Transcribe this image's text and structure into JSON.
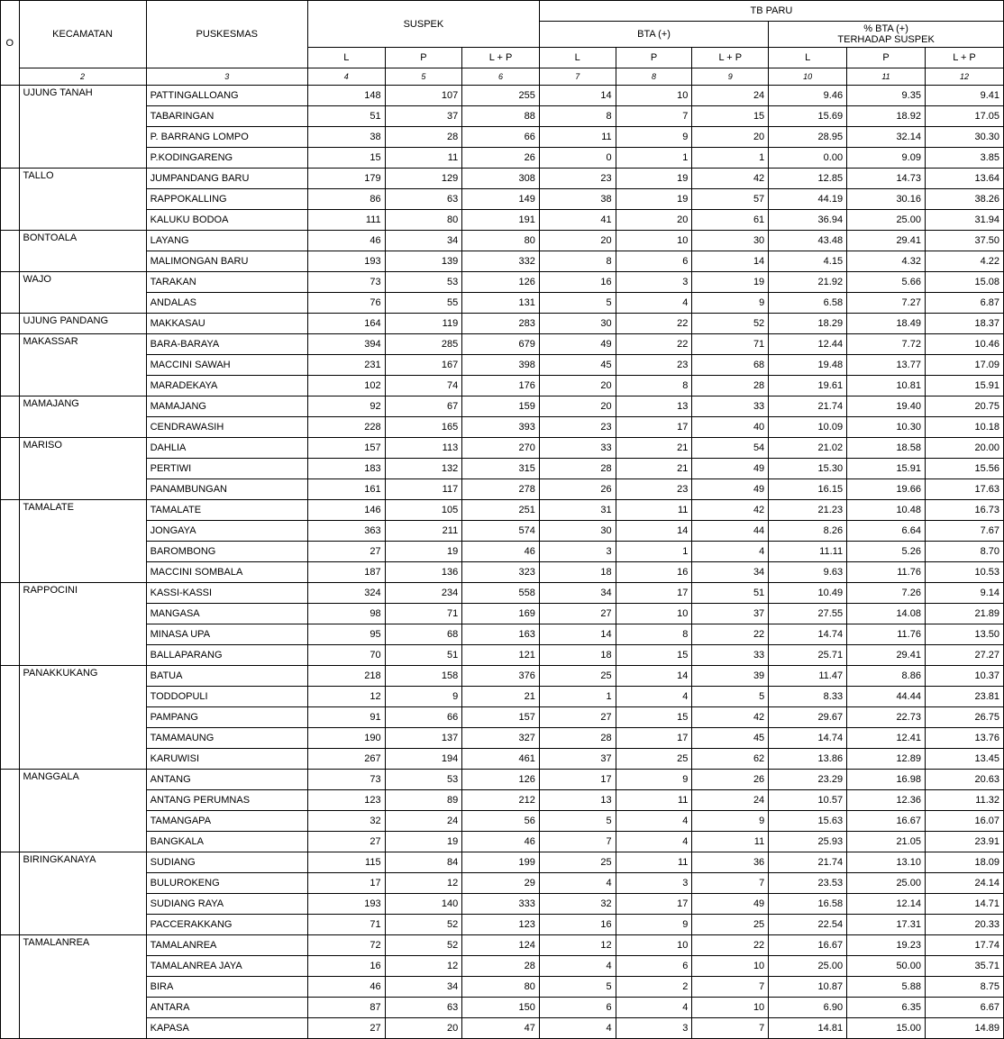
{
  "headers": {
    "kecamatan": "KECAMATAN",
    "puskesmas": "PUSKESMAS",
    "suspek": "SUSPEK",
    "tbparu": "TB PARU",
    "bta": "BTA (+)",
    "pct_bta": "% BTA (+)",
    "terhadap": "TERHADAP SUSPEK",
    "L": "L",
    "P": "P",
    "LP": "L + P",
    "no_label": "O"
  },
  "colnums": [
    "2",
    "3",
    "4",
    "5",
    "6",
    "7",
    "8",
    "9",
    "10",
    "11",
    "12"
  ],
  "rows": [
    {
      "kec": "UJUNG TANAH",
      "pus": "PATTINGALLOANG",
      "vals": [
        "148",
        "107",
        "255",
        "14",
        "10",
        "24",
        "9.46",
        "9.35",
        "9.41"
      ]
    },
    {
      "kec": "",
      "pus": "TABARINGAN",
      "vals": [
        "51",
        "37",
        "88",
        "8",
        "7",
        "15",
        "15.69",
        "18.92",
        "17.05"
      ]
    },
    {
      "kec": "",
      "pus": "P. BARRANG LOMPO",
      "vals": [
        "38",
        "28",
        "66",
        "11",
        "9",
        "20",
        "28.95",
        "32.14",
        "30.30"
      ]
    },
    {
      "kec": "",
      "pus": "P.KODINGARENG",
      "vals": [
        "15",
        "11",
        "26",
        "0",
        "1",
        "1",
        "0.00",
        "9.09",
        "3.85"
      ]
    },
    {
      "kec": "TALLO",
      "pus": "JUMPANDANG BARU",
      "vals": [
        "179",
        "129",
        "308",
        "23",
        "19",
        "42",
        "12.85",
        "14.73",
        "13.64"
      ]
    },
    {
      "kec": "",
      "pus": "RAPPOKALLING",
      "vals": [
        "86",
        "63",
        "149",
        "38",
        "19",
        "57",
        "44.19",
        "30.16",
        "38.26"
      ]
    },
    {
      "kec": "",
      "pus": "KALUKU BODOA",
      "vals": [
        "111",
        "80",
        "191",
        "41",
        "20",
        "61",
        "36.94",
        "25.00",
        "31.94"
      ]
    },
    {
      "kec": "BONTOALA",
      "pus": "LAYANG",
      "vals": [
        "46",
        "34",
        "80",
        "20",
        "10",
        "30",
        "43.48",
        "29.41",
        "37.50"
      ]
    },
    {
      "kec": "",
      "pus": "MALIMONGAN BARU",
      "vals": [
        "193",
        "139",
        "332",
        "8",
        "6",
        "14",
        "4.15",
        "4.32",
        "4.22"
      ]
    },
    {
      "kec": "WAJO",
      "pus": "TARAKAN",
      "vals": [
        "73",
        "53",
        "126",
        "16",
        "3",
        "19",
        "21.92",
        "5.66",
        "15.08"
      ]
    },
    {
      "kec": "",
      "pus": "ANDALAS",
      "vals": [
        "76",
        "55",
        "131",
        "5",
        "4",
        "9",
        "6.58",
        "7.27",
        "6.87"
      ]
    },
    {
      "kec": "UJUNG PANDANG",
      "pus": "MAKKASAU",
      "vals": [
        "164",
        "119",
        "283",
        "30",
        "22",
        "52",
        "18.29",
        "18.49",
        "18.37"
      ]
    },
    {
      "kec": "MAKASSAR",
      "pus": "BARA-BARAYA",
      "vals": [
        "394",
        "285",
        "679",
        "49",
        "22",
        "71",
        "12.44",
        "7.72",
        "10.46"
      ]
    },
    {
      "kec": "",
      "pus": "MACCINI SAWAH",
      "vals": [
        "231",
        "167",
        "398",
        "45",
        "23",
        "68",
        "19.48",
        "13.77",
        "17.09"
      ]
    },
    {
      "kec": "",
      "pus": "MARADEKAYA",
      "vals": [
        "102",
        "74",
        "176",
        "20",
        "8",
        "28",
        "19.61",
        "10.81",
        "15.91"
      ]
    },
    {
      "kec": "MAMAJANG",
      "pus": "MAMAJANG",
      "vals": [
        "92",
        "67",
        "159",
        "20",
        "13",
        "33",
        "21.74",
        "19.40",
        "20.75"
      ]
    },
    {
      "kec": "",
      "pus": "CENDRAWASIH",
      "vals": [
        "228",
        "165",
        "393",
        "23",
        "17",
        "40",
        "10.09",
        "10.30",
        "10.18"
      ]
    },
    {
      "kec": "MARISO",
      "pus": "DAHLIA",
      "vals": [
        "157",
        "113",
        "270",
        "33",
        "21",
        "54",
        "21.02",
        "18.58",
        "20.00"
      ]
    },
    {
      "kec": "",
      "pus": "PERTIWI",
      "vals": [
        "183",
        "132",
        "315",
        "28",
        "21",
        "49",
        "15.30",
        "15.91",
        "15.56"
      ]
    },
    {
      "kec": "",
      "pus": "PANAMBUNGAN",
      "vals": [
        "161",
        "117",
        "278",
        "26",
        "23",
        "49",
        "16.15",
        "19.66",
        "17.63"
      ]
    },
    {
      "kec": "TAMALATE",
      "pus": "TAMALATE",
      "vals": [
        "146",
        "105",
        "251",
        "31",
        "11",
        "42",
        "21.23",
        "10.48",
        "16.73"
      ]
    },
    {
      "kec": "",
      "pus": "JONGAYA",
      "vals": [
        "363",
        "211",
        "574",
        "30",
        "14",
        "44",
        "8.26",
        "6.64",
        "7.67"
      ]
    },
    {
      "kec": "",
      "pus": "BAROMBONG",
      "vals": [
        "27",
        "19",
        "46",
        "3",
        "1",
        "4",
        "11.11",
        "5.26",
        "8.70"
      ]
    },
    {
      "kec": "",
      "pus": "MACCINI SOMBALA",
      "vals": [
        "187",
        "136",
        "323",
        "18",
        "16",
        "34",
        "9.63",
        "11.76",
        "10.53"
      ]
    },
    {
      "kec": "RAPPOCINI",
      "pus": "KASSI-KASSI",
      "vals": [
        "324",
        "234",
        "558",
        "34",
        "17",
        "51",
        "10.49",
        "7.26",
        "9.14"
      ]
    },
    {
      "kec": "",
      "pus": "MANGASA",
      "vals": [
        "98",
        "71",
        "169",
        "27",
        "10",
        "37",
        "27.55",
        "14.08",
        "21.89"
      ]
    },
    {
      "kec": "",
      "pus": "MINASA UPA",
      "vals": [
        "95",
        "68",
        "163",
        "14",
        "8",
        "22",
        "14.74",
        "11.76",
        "13.50"
      ]
    },
    {
      "kec": "",
      "pus": "BALLAPARANG",
      "vals": [
        "70",
        "51",
        "121",
        "18",
        "15",
        "33",
        "25.71",
        "29.41",
        "27.27"
      ]
    },
    {
      "kec": "PANAKKUKANG",
      "pus": "BATUA",
      "vals": [
        "218",
        "158",
        "376",
        "25",
        "14",
        "39",
        "11.47",
        "8.86",
        "10.37"
      ]
    },
    {
      "kec": "",
      "pus": "TODDOPULI",
      "vals": [
        "12",
        "9",
        "21",
        "1",
        "4",
        "5",
        "8.33",
        "44.44",
        "23.81"
      ]
    },
    {
      "kec": "",
      "pus": "PAMPANG",
      "vals": [
        "91",
        "66",
        "157",
        "27",
        "15",
        "42",
        "29.67",
        "22.73",
        "26.75"
      ]
    },
    {
      "kec": "",
      "pus": "TAMAMAUNG",
      "vals": [
        "190",
        "137",
        "327",
        "28",
        "17",
        "45",
        "14.74",
        "12.41",
        "13.76"
      ]
    },
    {
      "kec": "",
      "pus": "KARUWISI",
      "vals": [
        "267",
        "194",
        "461",
        "37",
        "25",
        "62",
        "13.86",
        "12.89",
        "13.45"
      ]
    },
    {
      "kec": "MANGGALA",
      "pus": "ANTANG",
      "vals": [
        "73",
        "53",
        "126",
        "17",
        "9",
        "26",
        "23.29",
        "16.98",
        "20.63"
      ]
    },
    {
      "kec": "",
      "pus": "ANTANG PERUMNAS",
      "vals": [
        "123",
        "89",
        "212",
        "13",
        "11",
        "24",
        "10.57",
        "12.36",
        "11.32"
      ]
    },
    {
      "kec": "",
      "pus": "TAMANGAPA",
      "vals": [
        "32",
        "24",
        "56",
        "5",
        "4",
        "9",
        "15.63",
        "16.67",
        "16.07"
      ]
    },
    {
      "kec": "",
      "pus": "BANGKALA",
      "vals": [
        "27",
        "19",
        "46",
        "7",
        "4",
        "11",
        "25.93",
        "21.05",
        "23.91"
      ]
    },
    {
      "kec": "BIRINGKANAYA",
      "pus": "SUDIANG",
      "vals": [
        "115",
        "84",
        "199",
        "25",
        "11",
        "36",
        "21.74",
        "13.10",
        "18.09"
      ]
    },
    {
      "kec": "",
      "pus": "BULUROKENG",
      "vals": [
        "17",
        "12",
        "29",
        "4",
        "3",
        "7",
        "23.53",
        "25.00",
        "24.14"
      ]
    },
    {
      "kec": "",
      "pus": "SUDIANG RAYA",
      "vals": [
        "193",
        "140",
        "333",
        "32",
        "17",
        "49",
        "16.58",
        "12.14",
        "14.71"
      ]
    },
    {
      "kec": "",
      "pus": "PACCERAKKANG",
      "vals": [
        "71",
        "52",
        "123",
        "16",
        "9",
        "25",
        "22.54",
        "17.31",
        "20.33"
      ]
    },
    {
      "kec": "TAMALANREA",
      "pus": "TAMALANREA",
      "vals": [
        "72",
        "52",
        "124",
        "12",
        "10",
        "22",
        "16.67",
        "19.23",
        "17.74"
      ]
    },
    {
      "kec": "",
      "pus": "TAMALANREA JAYA",
      "vals": [
        "16",
        "12",
        "28",
        "4",
        "6",
        "10",
        "25.00",
        "50.00",
        "35.71"
      ]
    },
    {
      "kec": "",
      "pus": "BIRA",
      "vals": [
        "46",
        "34",
        "80",
        "5",
        "2",
        "7",
        "10.87",
        "5.88",
        "8.75"
      ]
    },
    {
      "kec": "",
      "pus": "ANTARA",
      "vals": [
        "87",
        "63",
        "150",
        "6",
        "4",
        "10",
        "6.90",
        "6.35",
        "6.67"
      ]
    },
    {
      "kec": "",
      "pus": "KAPASA",
      "vals": [
        "27",
        "20",
        "47",
        "4",
        "3",
        "7",
        "14.81",
        "15.00",
        "14.89"
      ]
    }
  ],
  "rowgroups": [
    4,
    3,
    2,
    2,
    1,
    3,
    2,
    3,
    4,
    4,
    5,
    4,
    4,
    5
  ]
}
